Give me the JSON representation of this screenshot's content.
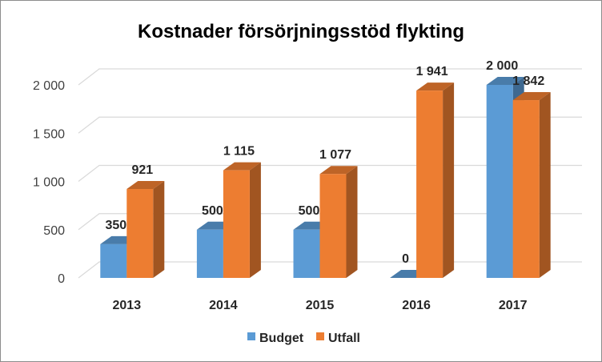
{
  "chart_data": {
    "type": "bar",
    "title": "Kostnader försörjningsstöd flykting",
    "categories": [
      "2013",
      "2014",
      "2015",
      "2016",
      "2017"
    ],
    "series": [
      {
        "name": "Budget",
        "values": [
          350,
          500,
          500,
          0,
          2000
        ],
        "labels": [
          "350",
          "500",
          "500",
          "0",
          "2 000"
        ],
        "color": "#5b9bd5"
      },
      {
        "name": "Utfall",
        "values": [
          921,
          1115,
          1077,
          1941,
          1842
        ],
        "labels": [
          "921",
          "1 115",
          "1 077",
          "1 941",
          "1 842"
        ],
        "color": "#ed7d31"
      }
    ],
    "ylim": [
      0,
      2000
    ],
    "yticks": [
      0,
      500,
      1000,
      1500,
      2000
    ],
    "ytick_labels": [
      "0",
      "500",
      "1 000",
      "1 500",
      "2 000"
    ],
    "grid": true,
    "legend_position": "bottom",
    "style": "3d-clustered-column"
  }
}
